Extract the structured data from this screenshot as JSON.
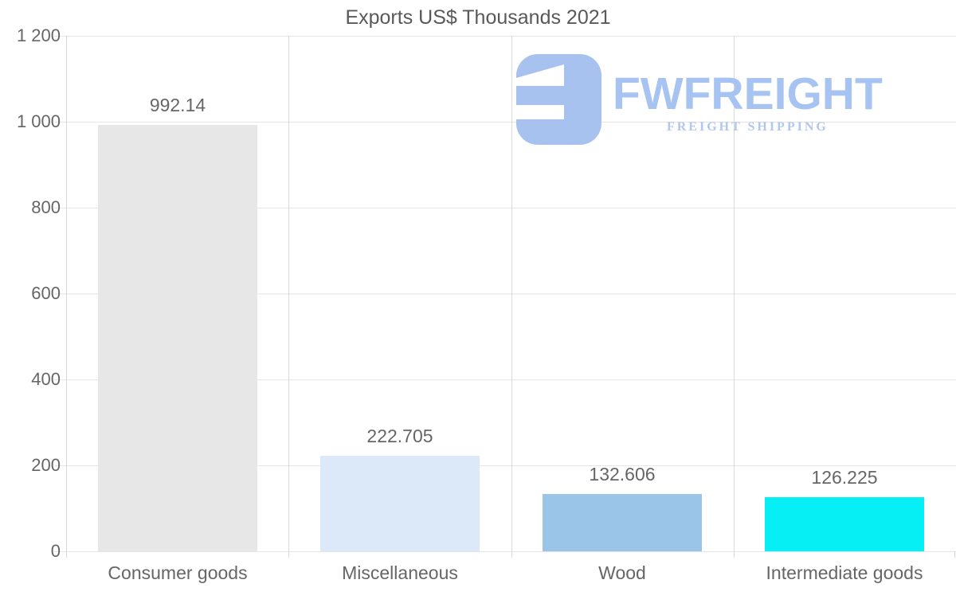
{
  "chart_data": {
    "type": "bar",
    "title": "Exports US$ Thousands 2021",
    "categories": [
      "Consumer goods",
      "Miscellaneous",
      "Wood",
      "Intermediate goods"
    ],
    "values": [
      992.14,
      222.705,
      132.606,
      126.225
    ],
    "value_labels": [
      "992.14",
      "222.705",
      "132.606",
      "126.225"
    ],
    "bar_colors": [
      "#e7e7e7",
      "#dbe9f8",
      "#9ac5e9",
      "#05eff4"
    ],
    "xlabel": "",
    "ylabel": "",
    "ylim": [
      0,
      1200
    ],
    "ytick_values": [
      0,
      200,
      400,
      600,
      800,
      1000,
      1200
    ],
    "ytick_labels": [
      "0",
      "200",
      "400",
      "600",
      "800",
      "1 000",
      "1 200"
    ],
    "grid": true,
    "legend": "none"
  },
  "watermark": {
    "brand": "FWFREIGHT",
    "tagline": "FREIGHT SHIPPING",
    "brand_color": "#a6c3f1",
    "tagline_color": "#b1c7ef"
  },
  "ui_colors": {
    "title_text": "#595959",
    "axis_text": "#666666",
    "gridline": "#e5e5e5",
    "separator": "#dbdbdb"
  }
}
